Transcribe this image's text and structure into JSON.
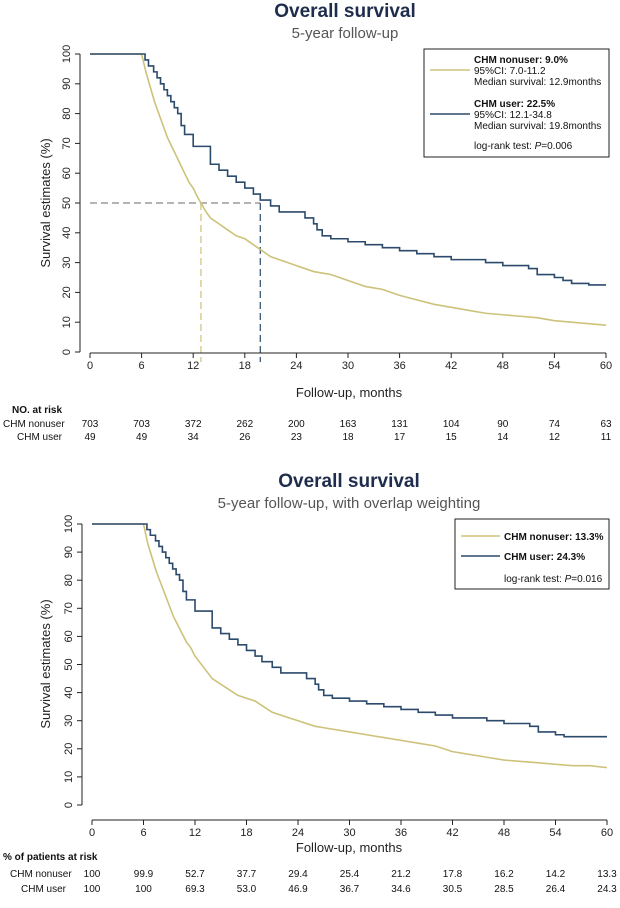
{
  "colors": {
    "nonuser": "#cdc27a",
    "user": "#2c4a6b",
    "title": "#1f2d4d",
    "reference": "#888888"
  },
  "chart_data": [
    {
      "type": "line",
      "title": "Overall survival",
      "subtitle": "5-year follow-up",
      "xlabel": "Follow-up, months",
      "ylabel": "Survival estimates (%)",
      "xlim": [
        0,
        60
      ],
      "ylim": [
        0,
        100
      ],
      "xticks": [
        "0",
        "6",
        "12",
        "18",
        "24",
        "30",
        "36",
        "42",
        "48",
        "54",
        "60"
      ],
      "yticks": [
        "0",
        "10",
        "20",
        "30",
        "40",
        "50",
        "60",
        "70",
        "80",
        "90",
        "100"
      ],
      "legend": {
        "nonuser_title": "CHM nonuser: 9.0%",
        "nonuser_ci": "95%CI: 7.0-11.2",
        "nonuser_median": "Median survival: 12.9months",
        "user_title": "CHM user: 22.5%",
        "user_ci": "95%CI: 12.1-34.8",
        "user_median": "Median survival: 19.8months",
        "test_prefix": "log-rank test: ",
        "test_p_label": "P",
        "test_value": "=0.006"
      },
      "median_reference": {
        "y": 50,
        "nonuser_x": 12.9,
        "user_x": 19.8
      },
      "series": [
        {
          "name": "CHM nonuser",
          "x": [
            0,
            6,
            6.5,
            7,
            7.5,
            8,
            8.5,
            9,
            9.5,
            10,
            10.5,
            11,
            11.5,
            12,
            12.5,
            12.9,
            13.5,
            14,
            15,
            16,
            17,
            18,
            19,
            20,
            21,
            22,
            23,
            24,
            25,
            26,
            27,
            28,
            29,
            30,
            32,
            34,
            36,
            38,
            40,
            42,
            44,
            46,
            48,
            50,
            52,
            54,
            56,
            58,
            60
          ],
          "y": [
            100,
            100,
            94,
            89,
            84,
            80,
            76,
            72,
            69,
            66,
            63,
            60,
            57,
            55,
            52,
            50,
            47,
            45,
            43,
            41,
            39,
            38,
            36,
            34,
            32,
            31,
            30,
            29,
            28,
            27,
            26.5,
            26,
            25,
            24,
            22,
            21,
            19,
            17.5,
            16,
            15,
            14,
            13,
            12.5,
            12,
            11.5,
            10.5,
            10,
            9.5,
            9
          ]
        },
        {
          "name": "CHM user",
          "x": [
            0,
            6,
            6.4,
            6.8,
            7.4,
            7.8,
            8.2,
            8.6,
            9,
            9.4,
            9.8,
            10.2,
            10.6,
            11,
            12,
            14,
            15,
            16,
            17,
            18,
            19,
            19.8,
            21,
            22,
            25,
            26,
            26.4,
            27,
            28,
            30,
            32,
            34,
            36,
            38,
            40,
            42,
            46,
            48,
            51,
            52,
            54,
            55,
            56,
            58,
            60
          ],
          "y": [
            100,
            100,
            98,
            96,
            94,
            92,
            90,
            88,
            86,
            84,
            82,
            80,
            76,
            73,
            69,
            63,
            61,
            59,
            57,
            55,
            53,
            51,
            49,
            47,
            45,
            43,
            41,
            39,
            38,
            37,
            36,
            35,
            34,
            33,
            32,
            31,
            30,
            29,
            28,
            26,
            25,
            24,
            23,
            22.5,
            22.5
          ]
        }
      ],
      "risk_table": {
        "header": "NO. at risk",
        "rows": [
          {
            "label": "CHM nonuser",
            "values": [
              "703",
              "703",
              "372",
              "262",
              "200",
              "163",
              "131",
              "104",
              "90",
              "74",
              "63"
            ]
          },
          {
            "label": "CHM user",
            "values": [
              "49",
              "49",
              "34",
              "26",
              "23",
              "18",
              "17",
              "15",
              "14",
              "12",
              "11"
            ]
          }
        ]
      }
    },
    {
      "type": "line",
      "title": "Overall survival",
      "subtitle": "5-year follow-up, with overlap weighting",
      "xlabel": "Follow-up, months",
      "ylabel": "Survival estimates (%)",
      "xlim": [
        0,
        60
      ],
      "ylim": [
        0,
        100
      ],
      "xticks": [
        "0",
        "6",
        "12",
        "18",
        "24",
        "30",
        "36",
        "42",
        "48",
        "54",
        "60"
      ],
      "yticks": [
        "0",
        "10",
        "20",
        "30",
        "40",
        "50",
        "60",
        "70",
        "80",
        "90",
        "100"
      ],
      "legend": {
        "nonuser_title": "CHM nonuser: 13.3%",
        "user_title": "CHM user: 24.3%",
        "test_prefix": "log-rank test: ",
        "test_p_label": "P",
        "test_value": "=0.016"
      },
      "series": [
        {
          "name": "CHM nonuser",
          "x": [
            0,
            6,
            6.5,
            7,
            7.5,
            8,
            8.5,
            9,
            9.5,
            10,
            10.5,
            11,
            11.5,
            12,
            13,
            14,
            15,
            16,
            17,
            18,
            19,
            20,
            21,
            22,
            24,
            26,
            28,
            30,
            32,
            34,
            36,
            38,
            40,
            42,
            44,
            46,
            48,
            50,
            52,
            54,
            56,
            58,
            60
          ],
          "y": [
            100,
            100,
            93,
            88,
            83,
            79,
            75,
            71,
            67,
            64,
            61,
            58,
            56,
            53,
            49,
            45,
            43,
            41,
            39,
            38,
            37,
            35,
            33,
            32,
            30,
            28,
            27,
            26,
            25,
            24,
            23,
            22,
            21,
            19,
            18,
            17,
            16,
            15.5,
            15,
            14.5,
            14,
            14,
            13.3
          ]
        },
        {
          "name": "CHM user",
          "x": [
            0,
            6,
            6.4,
            6.8,
            7.4,
            7.8,
            8.2,
            8.6,
            9,
            9.4,
            9.8,
            10.2,
            10.6,
            11,
            12,
            14,
            15,
            16,
            17,
            18,
            19,
            19.8,
            21,
            22,
            25,
            26,
            26.4,
            27,
            28,
            30,
            32,
            34,
            36,
            38,
            40,
            42,
            46,
            48,
            51,
            52,
            54,
            55,
            56,
            58,
            60
          ],
          "y": [
            100,
            100,
            98,
            96,
            94,
            92,
            90,
            88,
            86,
            84,
            82,
            80,
            76,
            73,
            69,
            63,
            61,
            59,
            57,
            55,
            53,
            51,
            49,
            47,
            45,
            43,
            41,
            39,
            38,
            37,
            36,
            35,
            34,
            33,
            32,
            31,
            30,
            29,
            28,
            26,
            25,
            24.3,
            24.3,
            24.3,
            24.3
          ]
        }
      ],
      "risk_table": {
        "header": "% of patients at risk",
        "rows": [
          {
            "label": "CHM nonuser",
            "values": [
              "100",
              "99.9",
              "52.7",
              "37.7",
              "29.4",
              "25.4",
              "21.2",
              "17.8",
              "16.2",
              "14.2",
              "13.3"
            ]
          },
          {
            "label": "CHM user",
            "values": [
              "100",
              "100",
              "69.3",
              "53.0",
              "46.9",
              "36.7",
              "34.6",
              "30.5",
              "28.5",
              "26.4",
              "24.3"
            ]
          }
        ]
      }
    }
  ]
}
